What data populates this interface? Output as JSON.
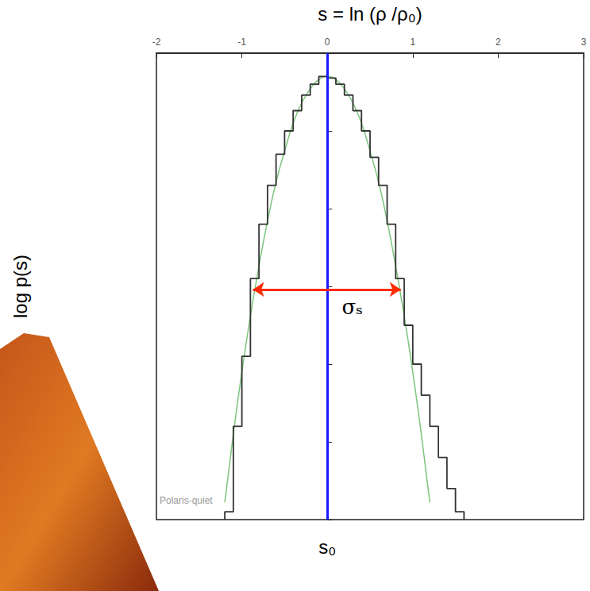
{
  "chart_data": {
    "type": "histogram",
    "xlabel": "s = ln (ρ /ρ₀)",
    "ylabel": "log p(s)",
    "bins": [
      -1.2,
      -1.1,
      -1.0,
      -0.9,
      -0.8,
      -0.7,
      -0.6,
      -0.5,
      -0.4,
      -0.3,
      -0.2,
      -0.1,
      0.0,
      0.1,
      0.2,
      0.3,
      0.4,
      0.5,
      0.6,
      0.7,
      0.8,
      0.9,
      1.0,
      1.1,
      1.2,
      1.3,
      1.4,
      1.5,
      1.6
    ],
    "values": [
      -2.95,
      -2.4,
      -1.95,
      -1.45,
      -1.1,
      -0.85,
      -0.65,
      -0.5,
      -0.37,
      -0.27,
      -0.2,
      -0.15,
      -0.16,
      -0.2,
      -0.27,
      -0.37,
      -0.5,
      -0.67,
      -0.85,
      -1.1,
      -1.45,
      -1.75,
      -2.0,
      -2.2,
      -2.4,
      -2.6,
      -2.8,
      -2.95
    ],
    "color": "#333333",
    "fit": {
      "x": [
        -1.2,
        -1.1,
        -1.0,
        -0.9,
        -0.8,
        -0.7,
        -0.6,
        -0.5,
        -0.4,
        -0.3,
        -0.2,
        -0.1,
        0.0,
        0.1,
        0.2,
        0.3,
        0.4,
        0.5,
        0.6,
        0.7,
        0.8,
        0.9,
        1.0,
        1.1,
        1.2
      ],
      "values": [
        -2.89,
        -2.45,
        -2.05,
        -1.69,
        -1.37,
        -1.08,
        -0.83,
        -0.63,
        -0.45,
        -0.32,
        -0.23,
        -0.17,
        -0.15,
        -0.17,
        -0.23,
        -0.32,
        -0.45,
        -0.63,
        -0.83,
        -1.08,
        -1.37,
        -1.69,
        -2.05,
        -2.45,
        -2.89
      ],
      "color": "#7cc47c"
    },
    "xlim": [
      -2,
      3
    ],
    "xticks": [
      -2,
      -1,
      0,
      1,
      2,
      3
    ],
    "ylim": [
      -3,
      0
    ],
    "yticks": [
      -3,
      -2.5,
      -2,
      -1.5,
      -1,
      -0.5,
      0
    ],
    "tick_labels": "x",
    "grid": false,
    "s0": {
      "value": 0,
      "label": "s₀",
      "color": "#1a1aff"
    },
    "sigma": {
      "x": [
        -0.87,
        0.86
      ],
      "y": -1.52,
      "label": "σₛ",
      "color": "#ff2a00"
    },
    "annotation": "Polaris-quiet"
  }
}
